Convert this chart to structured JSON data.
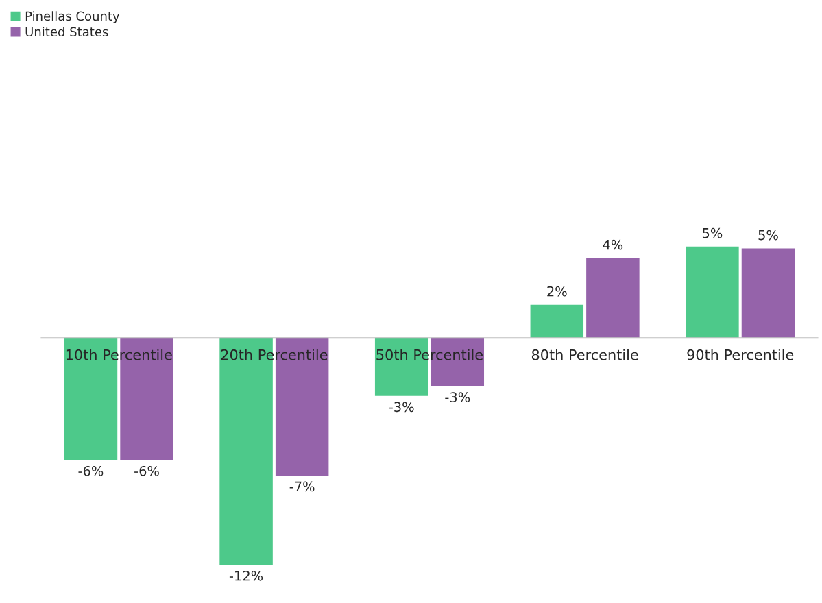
{
  "chart_data": {
    "type": "bar",
    "categories": [
      "10th Percentile",
      "20th Percentile",
      "50th Percentile",
      "80th Percentile",
      "90th Percentile"
    ],
    "series": [
      {
        "name": "Pinellas County",
        "color": "#4dc98a",
        "values": [
          -6.3,
          -11.7,
          -3.0,
          1.7,
          4.7
        ],
        "value_labels": [
          "-6%",
          "-12%",
          "-3%",
          "2%",
          "5%"
        ]
      },
      {
        "name": "United States",
        "color": "#9563aa",
        "values": [
          -6.3,
          -7.1,
          -2.5,
          4.1,
          4.6
        ],
        "value_labels": [
          "-6%",
          "-7%",
          "-3%",
          "4%",
          "5%"
        ]
      }
    ],
    "legend": "top left"
  }
}
